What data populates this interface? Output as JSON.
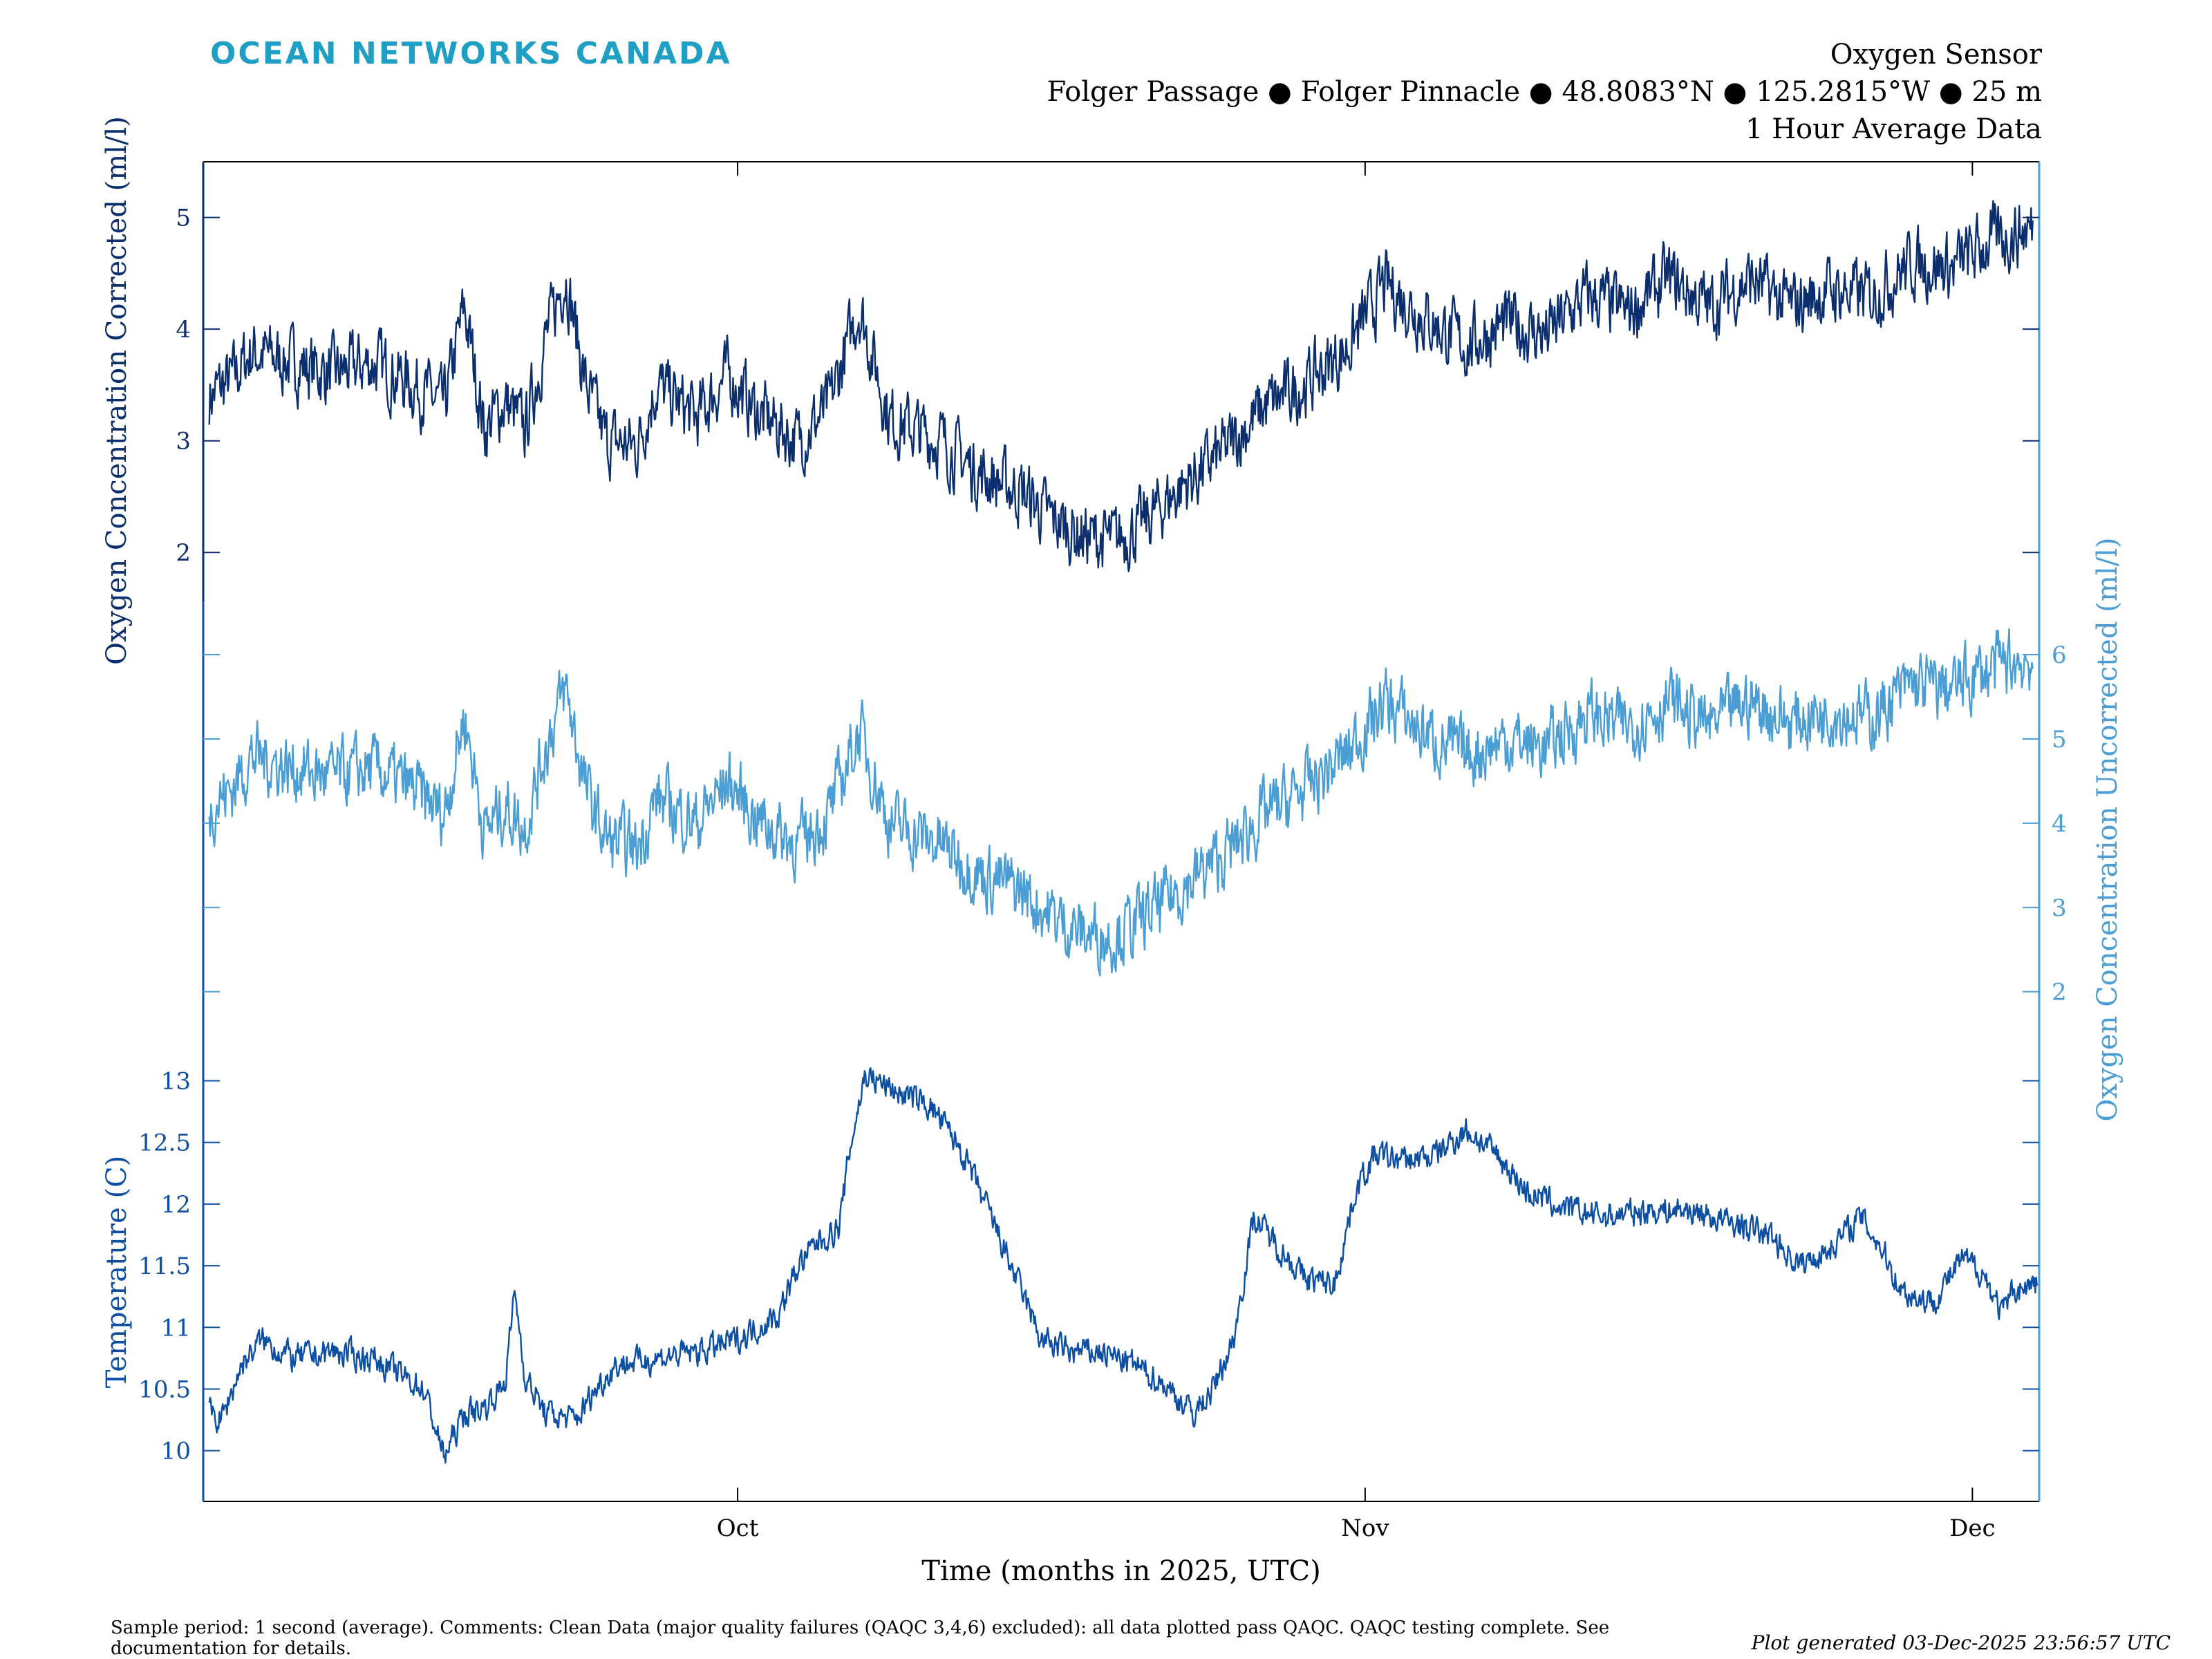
{
  "brand": "OCEAN NETWORKS CANADA",
  "header": {
    "title": "Oxygen Sensor",
    "location": "Folger Passage ● Folger Pinnacle ● 48.8083°N ● 125.2815°W ● 25 m",
    "subtitle": "1 Hour Average Data"
  },
  "footer": {
    "comment": "Sample period: 1 second (average). Comments: Clean Data (major quality failures (QAQC 3,4,6) excluded): all data plotted pass QAQC. QAQC testing complete. See documentation for details.",
    "generated": "Plot generated 03-Dec-2025 23:56:57 UTC"
  },
  "colors": {
    "corrected": "#0b2f6e",
    "uncorrected": "#4a9ed3",
    "temperature": "#0d4fa3",
    "axis": "#000000"
  },
  "chart_data": {
    "type": "line",
    "title": "Oxygen Sensor",
    "xlabel": "Time (months in 2025, UTC)",
    "x_ticks": [
      {
        "label": "Oct",
        "day": 30
      },
      {
        "label": "Nov",
        "day": 61
      },
      {
        "label": "Dec",
        "day": 91
      }
    ],
    "xlim": [
      3.6,
      94.3
    ],
    "series": [
      {
        "name": "Oxygen Concentration Corrected",
        "ylabel": "Oxygen Concentration Corrected (ml/l)",
        "axis": "left",
        "color_key": "corrected",
        "ylim": [
          1.5,
          5.4
        ],
        "ticks": [
          2,
          3,
          4,
          5
        ],
        "noise": 0.32,
        "points": [
          [
            3.9,
            3.4
          ],
          [
            5,
            3.55
          ],
          [
            6,
            3.8
          ],
          [
            8,
            3.7
          ],
          [
            10,
            3.6
          ],
          [
            12,
            3.7
          ],
          [
            14,
            3.5
          ],
          [
            15.5,
            3.3
          ],
          [
            16.5,
            4.2
          ],
          [
            17.5,
            3.1
          ],
          [
            18.5,
            3.35
          ],
          [
            19.5,
            3.1
          ],
          [
            20.5,
            3.9
          ],
          [
            21.5,
            4.5
          ],
          [
            22.5,
            3.5
          ],
          [
            23.5,
            3.0
          ],
          [
            25,
            2.95
          ],
          [
            26,
            3.5
          ],
          [
            28,
            3.2
          ],
          [
            29.5,
            3.6
          ],
          [
            31,
            3.25
          ],
          [
            33,
            3.0
          ],
          [
            34.5,
            3.3
          ],
          [
            36,
            4.2
          ],
          [
            37.5,
            3.2
          ],
          [
            40,
            3.0
          ],
          [
            42,
            2.7
          ],
          [
            44,
            2.55
          ],
          [
            45.5,
            2.3
          ],
          [
            47,
            2.15
          ],
          [
            48.5,
            2.1
          ],
          [
            50,
            2.25
          ],
          [
            52,
            2.6
          ],
          [
            54,
            2.9
          ],
          [
            56,
            3.3
          ],
          [
            58,
            3.5
          ],
          [
            60,
            3.8
          ],
          [
            62,
            4.4
          ],
          [
            64,
            4.1
          ],
          [
            66,
            3.85
          ],
          [
            68,
            4.05
          ],
          [
            70,
            3.95
          ],
          [
            72,
            4.3
          ],
          [
            74,
            4.15
          ],
          [
            76,
            4.45
          ],
          [
            78,
            4.2
          ],
          [
            80,
            4.45
          ],
          [
            82,
            4.2
          ],
          [
            84,
            4.35
          ],
          [
            86,
            4.3
          ],
          [
            88,
            4.6
          ],
          [
            90,
            4.55
          ],
          [
            92,
            4.8
          ],
          [
            94,
            4.9
          ]
        ]
      },
      {
        "name": "Oxygen Concentration Uncorrected",
        "ylabel": "Oxygen Concentration Uncorrected (ml/l)",
        "axis": "right",
        "color_key": "uncorrected",
        "ylim": [
          1.3,
          6.55
        ],
        "ticks": [
          2,
          3,
          4,
          5,
          6
        ],
        "noise": 0.42,
        "points": [
          [
            3.9,
            4.2
          ],
          [
            5,
            4.4
          ],
          [
            6,
            4.8
          ],
          [
            8,
            4.65
          ],
          [
            10,
            4.55
          ],
          [
            12,
            4.65
          ],
          [
            14,
            4.4
          ],
          [
            15.5,
            4.1
          ],
          [
            16.5,
            5.3
          ],
          [
            17.5,
            3.9
          ],
          [
            18.5,
            4.2
          ],
          [
            19.5,
            3.95
          ],
          [
            20.5,
            4.9
          ],
          [
            21.5,
            5.6
          ],
          [
            22.5,
            4.4
          ],
          [
            23.5,
            3.8
          ],
          [
            25,
            3.7
          ],
          [
            26,
            4.3
          ],
          [
            28,
            4.0
          ],
          [
            29.5,
            4.5
          ],
          [
            31,
            4.05
          ],
          [
            33,
            3.75
          ],
          [
            34.5,
            4.1
          ],
          [
            36,
            5.1
          ],
          [
            37.5,
            4.0
          ],
          [
            40,
            3.75
          ],
          [
            42,
            3.4
          ],
          [
            44,
            3.2
          ],
          [
            45.5,
            2.9
          ],
          [
            47,
            2.7
          ],
          [
            48.5,
            2.65
          ],
          [
            50,
            2.85
          ],
          [
            52,
            3.25
          ],
          [
            54,
            3.6
          ],
          [
            56,
            4.1
          ],
          [
            58,
            4.4
          ],
          [
            60,
            4.8
          ],
          [
            62,
            5.45
          ],
          [
            64,
            5.05
          ],
          [
            66,
            4.8
          ],
          [
            68,
            5.0
          ],
          [
            70,
            4.9
          ],
          [
            72,
            5.3
          ],
          [
            74,
            5.15
          ],
          [
            76,
            5.45
          ],
          [
            78,
            5.15
          ],
          [
            80,
            5.45
          ],
          [
            82,
            5.2
          ],
          [
            84,
            5.35
          ],
          [
            86,
            5.25
          ],
          [
            88,
            5.65
          ],
          [
            90,
            5.6
          ],
          [
            92,
            5.85
          ],
          [
            94,
            5.95
          ]
        ]
      },
      {
        "name": "Temperature",
        "ylabel": "Temperature (C)",
        "axis": "left",
        "color_key": "temperature",
        "ylim": [
          9.6,
          13.3
        ],
        "ticks": [
          10,
          10.5,
          11,
          11.5,
          12,
          12.5,
          13
        ],
        "tick_labels": [
          "10",
          "10.5",
          "11",
          "11.5",
          "12",
          "12.5",
          "13"
        ],
        "noise": 0.12,
        "points": [
          [
            3.9,
            10.3
          ],
          [
            4.5,
            10.25
          ],
          [
            5.5,
            10.7
          ],
          [
            6.5,
            10.9
          ],
          [
            8,
            10.75
          ],
          [
            10,
            10.8
          ],
          [
            12,
            10.75
          ],
          [
            13.5,
            10.6
          ],
          [
            14.5,
            10.5
          ],
          [
            15.5,
            9.95
          ],
          [
            16.5,
            10.3
          ],
          [
            17.5,
            10.35
          ],
          [
            18.5,
            10.55
          ],
          [
            19,
            11.3
          ],
          [
            19.5,
            10.6
          ],
          [
            20.5,
            10.3
          ],
          [
            22,
            10.25
          ],
          [
            23,
            10.5
          ],
          [
            24,
            10.7
          ],
          [
            26,
            10.75
          ],
          [
            28,
            10.8
          ],
          [
            30,
            10.9
          ],
          [
            32,
            11.1
          ],
          [
            33,
            11.5
          ],
          [
            34,
            11.7
          ],
          [
            35,
            11.8
          ],
          [
            35.6,
            12.5
          ],
          [
            36.3,
            13.05
          ],
          [
            38,
            12.9
          ],
          [
            39.5,
            12.8
          ],
          [
            41,
            12.45
          ],
          [
            42.5,
            11.9
          ],
          [
            44,
            11.3
          ],
          [
            45,
            10.9
          ],
          [
            46.5,
            10.8
          ],
          [
            48,
            10.8
          ],
          [
            49.5,
            10.7
          ],
          [
            51,
            10.55
          ],
          [
            52.5,
            10.3
          ],
          [
            53.5,
            10.5
          ],
          [
            54.5,
            10.9
          ],
          [
            55.5,
            11.9
          ],
          [
            56.5,
            11.7
          ],
          [
            58,
            11.4
          ],
          [
            59.5,
            11.35
          ],
          [
            60.5,
            12.1
          ],
          [
            61.5,
            12.4
          ],
          [
            63,
            12.35
          ],
          [
            64.5,
            12.4
          ],
          [
            66,
            12.6
          ],
          [
            67.5,
            12.4
          ],
          [
            69,
            12.1
          ],
          [
            71,
            11.95
          ],
          [
            73,
            11.9
          ],
          [
            75,
            11.95
          ],
          [
            77,
            11.95
          ],
          [
            79,
            11.85
          ],
          [
            81,
            11.75
          ],
          [
            82.5,
            11.5
          ],
          [
            84,
            11.65
          ],
          [
            85.5,
            11.9
          ],
          [
            86.5,
            11.65
          ],
          [
            87.5,
            11.3
          ],
          [
            89,
            11.2
          ],
          [
            90.5,
            11.55
          ],
          [
            91.5,
            11.45
          ],
          [
            92.5,
            11.1
          ],
          [
            93,
            11.3
          ],
          [
            94.2,
            11.35
          ]
        ]
      }
    ]
  }
}
